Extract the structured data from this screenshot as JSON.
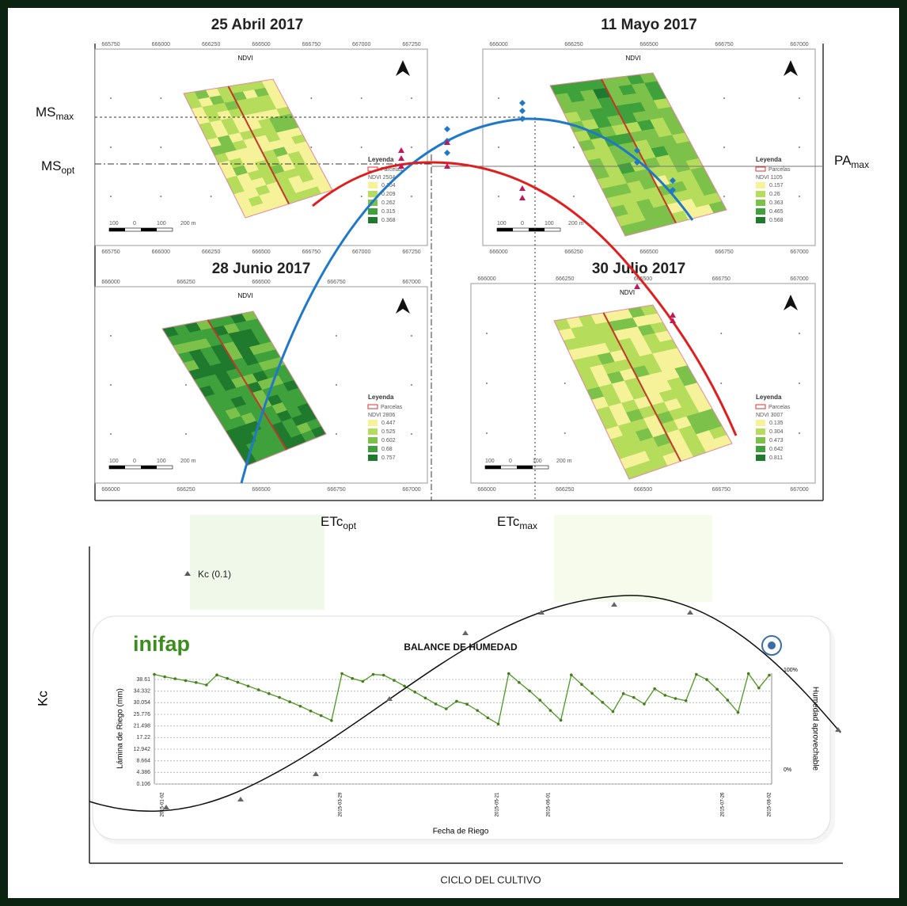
{
  "panels": [
    {
      "title": "25 Abril 2017",
      "map_title": "NDVI",
      "ticks": [
        665750,
        666000,
        666250,
        666500,
        666750,
        667000,
        667250
      ],
      "legend_title": "Leyenda",
      "legend_layer": "Parcelas",
      "legend_index": "NDVI 2504",
      "legend_values": [
        0.104,
        0.209,
        0.262,
        0.315,
        0.368
      ]
    },
    {
      "title": "11 Mayo 2017",
      "map_title": "NDVI",
      "ticks": [
        666000,
        666250,
        666500,
        666750,
        667000
      ],
      "legend_title": "Leyenda",
      "legend_layer": "Parcelas",
      "legend_index": "NDVI 1105",
      "legend_values": [
        0.157,
        0.26,
        0.363,
        0.465,
        0.568
      ]
    },
    {
      "title": "28 Junio 2017",
      "map_title": "NDVI",
      "ticks": [
        666000,
        666250,
        666500,
        666750,
        667000
      ],
      "legend_title": "Leyenda",
      "legend_layer": "Parcelas",
      "legend_index": "NDVI 2806",
      "legend_values": [
        0.447,
        0.525,
        0.602,
        0.68,
        0.757
      ]
    },
    {
      "title": "30 Julio 2017",
      "map_title": "NDVI",
      "ticks": [
        666000,
        666250,
        666500,
        666750,
        667000
      ],
      "legend_title": "Leyenda",
      "legend_layer": "Parcelas",
      "legend_index": "NDVI 3007",
      "legend_values": [
        0.135,
        0.304,
        0.473,
        0.642,
        0.811
      ]
    }
  ],
  "scale_labels": [
    "100",
    "0",
    "100",
    "200 m"
  ],
  "annotations": {
    "ms_max": {
      "base": "MS",
      "sub": "max"
    },
    "ms_opt": {
      "base": "MS",
      "sub": "opt"
    },
    "pa_max": {
      "base": "PA",
      "sub": "max"
    },
    "etc_opt": {
      "base": "ETc",
      "sub": "opt"
    },
    "etc_max": {
      "base": "ETc",
      "sub": "max"
    }
  },
  "kc_axis": {
    "y_label": "Kc",
    "x_label": "CICLO DEL CULTIVO",
    "marker_label": "Kc (0.1)"
  },
  "balance": {
    "logo": "inifap",
    "title": "BALANCE DE HUMEDAD",
    "y_label": "Lámina de Riego (mm)",
    "x_label": "Fecha de Riego",
    "right_label": "Humedad aprovechable",
    "right_top": "100%",
    "right_bottom": "0%",
    "yticks": [
      0.106,
      4.386,
      8.664,
      12.942,
      17.22,
      21.498,
      25.776,
      30.054,
      34.332,
      38.61
    ],
    "dates": [
      "2015-01-02",
      "2015-03-29",
      "2015-05-21",
      "2015-06-01",
      "2015-07-26",
      "2015-08-02"
    ],
    "values": [
      40.5,
      39.6,
      38.9,
      38.2,
      37.5,
      36.6,
      40.3,
      39,
      37.6,
      36.2,
      34.8,
      33.4,
      32,
      30.4,
      28.8,
      27,
      25.3,
      23.5,
      40.8,
      39,
      37.9,
      40.5,
      40.2,
      38.3,
      36.2,
      34,
      31.8,
      29.6,
      27.8,
      30.6,
      29.5,
      27.2,
      24.5,
      22.2,
      40.8,
      37.5,
      34.4,
      31,
      27.2,
      23.6,
      40.3,
      36.8,
      33.5,
      30.2,
      26.8,
      33.4,
      32,
      29.6,
      35.2,
      32.8,
      31.6,
      30.8,
      40.5,
      38.6,
      35,
      31,
      26.5,
      40.8,
      35.5,
      40.2
    ]
  }
}
